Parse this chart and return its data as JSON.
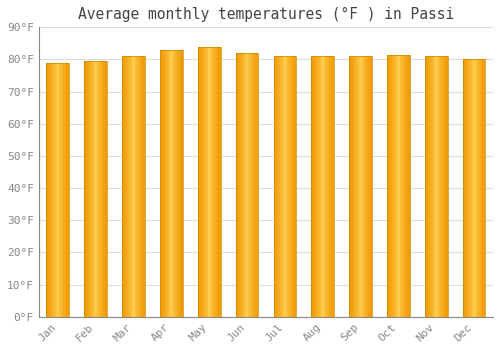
{
  "title": "Average monthly temperatures (°F ) in Passi",
  "categories": [
    "Jan",
    "Feb",
    "Mar",
    "Apr",
    "May",
    "Jun",
    "Jul",
    "Aug",
    "Sep",
    "Oct",
    "Nov",
    "Dec"
  ],
  "values": [
    79,
    79.5,
    81,
    83,
    84,
    82,
    81,
    81,
    81,
    81.5,
    81,
    80
  ],
  "bar_color_center": "#FFD966",
  "bar_color_edge": "#F5A800",
  "bar_edge_color": "#D4880A",
  "background_color": "#FFFFFF",
  "grid_color": "#DDDDDD",
  "text_color": "#888888",
  "title_color": "#444444",
  "ylim": [
    0,
    90
  ],
  "yticks": [
    0,
    10,
    20,
    30,
    40,
    50,
    60,
    70,
    80,
    90
  ],
  "ytick_labels": [
    "0°F",
    "10°F",
    "20°F",
    "30°F",
    "40°F",
    "50°F",
    "60°F",
    "70°F",
    "80°F",
    "90°F"
  ],
  "title_fontsize": 10.5,
  "tick_fontsize": 8,
  "font_family": "monospace",
  "bar_width": 0.6
}
